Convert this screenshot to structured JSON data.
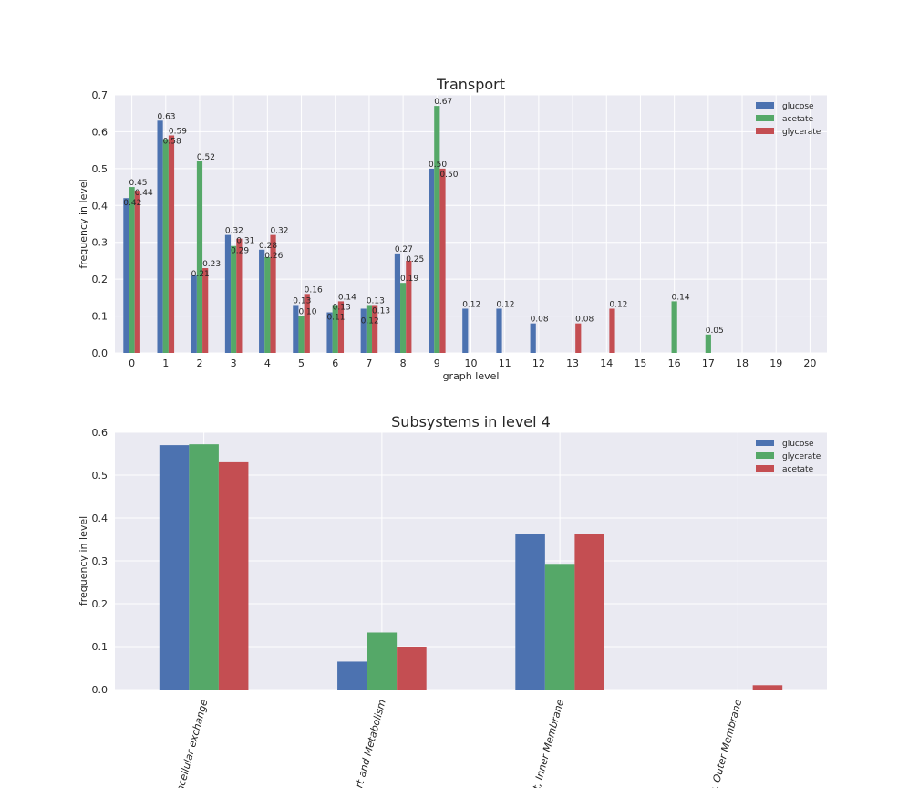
{
  "chart_data": [
    {
      "type": "bar",
      "title": "Transport",
      "xlabel": "graph level",
      "ylabel": "frequency in level",
      "ylim": [
        0,
        0.7
      ],
      "yticks": [
        "0.0",
        "0.1",
        "0.2",
        "0.3",
        "0.4",
        "0.5",
        "0.6",
        "0.7"
      ],
      "categories": [
        "0",
        "1",
        "2",
        "3",
        "4",
        "5",
        "6",
        "7",
        "8",
        "9",
        "10",
        "11",
        "12",
        "13",
        "14",
        "15",
        "16",
        "17",
        "18",
        "19",
        "20"
      ],
      "legend_position": "top-right",
      "series": [
        {
          "name": "glucose",
          "color": "#4C72B0",
          "values": [
            0.42,
            0.63,
            0.21,
            0.32,
            0.28,
            0.13,
            0.11,
            0.12,
            0.27,
            0.5,
            0.12,
            0.12,
            0.08,
            null,
            null,
            null,
            null,
            null,
            null,
            null,
            null
          ]
        },
        {
          "name": "acetate",
          "color": "#55A868",
          "values": [
            0.45,
            0.58,
            0.52,
            0.29,
            0.26,
            0.1,
            0.13,
            0.13,
            0.19,
            0.67,
            null,
            null,
            null,
            null,
            null,
            null,
            0.14,
            0.05,
            null,
            null,
            null
          ]
        },
        {
          "name": "glycerate",
          "color": "#C44E52",
          "values": [
            0.44,
            0.59,
            0.23,
            0.31,
            0.32,
            0.16,
            0.14,
            0.13,
            0.25,
            0.5,
            null,
            null,
            null,
            0.08,
            0.12,
            null,
            null,
            null,
            null,
            null,
            null
          ]
        }
      ]
    },
    {
      "type": "bar",
      "title": "Subsystems in level 4",
      "xlabel": "",
      "ylabel": "frequency in level",
      "ylim": [
        0,
        0.6
      ],
      "yticks": [
        "0.0",
        "0.1",
        "0.2",
        "0.3",
        "0.4",
        "0.5",
        "0.6"
      ],
      "categories": [
        "racellular exchange",
        "ort and Metabolism",
        "rt, Inner Membrane",
        "t, Outer Membrane"
      ],
      "legend_position": "top-right",
      "series": [
        {
          "name": "glucose",
          "color": "#4C72B0",
          "values": [
            0.57,
            0.065,
            0.363,
            0
          ]
        },
        {
          "name": "glycerate",
          "color": "#55A868",
          "values": [
            0.572,
            0.133,
            0.293,
            0
          ]
        },
        {
          "name": "acetate",
          "color": "#C44E52",
          "values": [
            0.53,
            0.1,
            0.362,
            0.01
          ]
        }
      ]
    }
  ]
}
